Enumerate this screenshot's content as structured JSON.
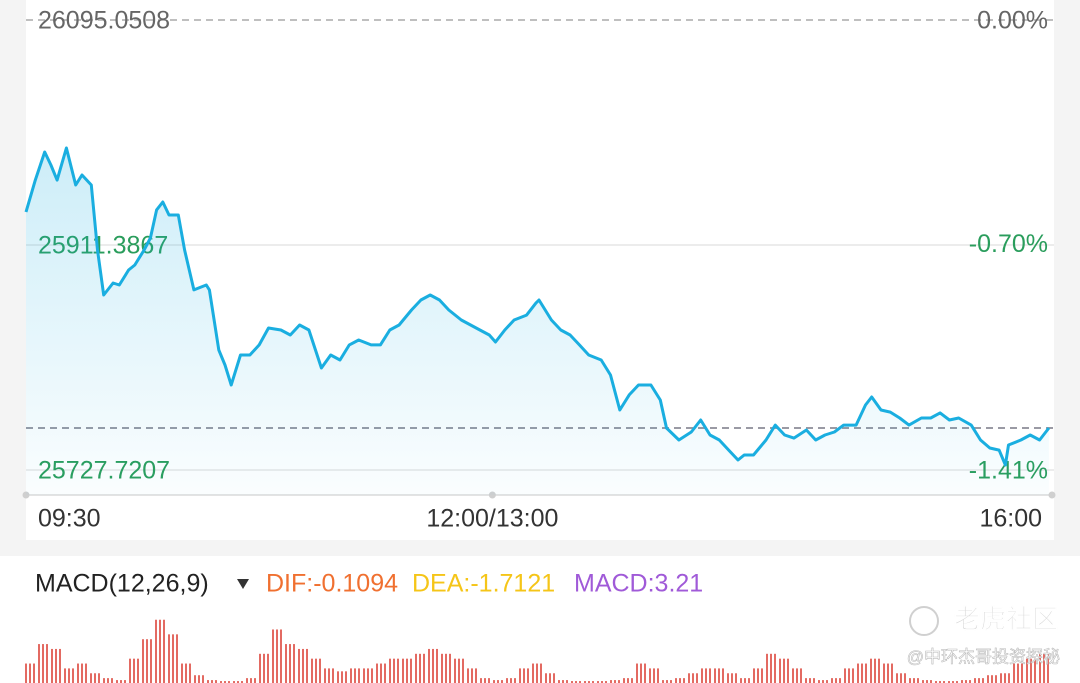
{
  "chart_data": [
    {
      "type": "line",
      "color": "#1aaee0",
      "x": [
        0,
        3,
        6,
        8,
        10,
        13,
        16,
        18,
        21,
        23,
        25,
        28,
        30,
        33,
        35,
        38,
        40,
        42,
        44,
        46,
        49,
        51,
        54,
        58,
        59,
        62,
        64,
        66,
        69,
        72,
        75,
        78,
        82,
        85,
        88,
        91,
        95,
        98,
        101,
        104,
        107,
        111,
        114,
        117,
        120,
        124,
        127,
        130,
        133,
        136,
        140,
        143,
        146,
        149,
        151,
        154,
        157,
        161,
        164,
        165,
        169,
        172,
        175,
        178,
        181,
        185,
        188,
        191,
        194,
        197,
        201,
        204,
        206,
        210,
        214,
        217,
        220,
        223,
        226,
        229,
        231,
        234,
        238,
        241,
        244,
        247,
        251,
        254,
        257,
        260,
        263,
        267,
        270,
        272,
        275,
        278,
        281,
        284,
        288,
        291,
        294,
        297,
        300,
        304,
        307,
        310,
        313,
        315,
        316,
        320,
        323,
        326,
        329
      ],
      "values": [
        25938.3,
        25964.4,
        25987.3,
        25976.7,
        25964.4,
        25990.6,
        25960.4,
        25968.5,
        25960.4,
        25907.3,
        25870.6,
        25880.4,
        25878.7,
        25891.0,
        25895.1,
        25907.3,
        25917.1,
        25940.0,
        25946.5,
        25935.9,
        25935.9,
        25907.3,
        25874.7,
        25878.7,
        25874.7,
        25825.7,
        25813.4,
        25797.1,
        25821.6,
        25821.6,
        25829.8,
        25843.6,
        25842.0,
        25837.9,
        25846.1,
        25842.0,
        25811.0,
        25821.6,
        25817.5,
        25829.8,
        25833.8,
        25829.8,
        25829.8,
        25842.0,
        25846.1,
        25858.3,
        25866.5,
        25870.6,
        25866.5,
        25858.3,
        25850.2,
        25846.1,
        25842.0,
        25837.9,
        25832.2,
        25842.0,
        25850.2,
        25854.2,
        25864.0,
        25866.5,
        25850.2,
        25842.0,
        25837.9,
        25829.8,
        25821.6,
        25817.5,
        25805.3,
        25776.7,
        25789.0,
        25797.1,
        25797.1,
        25784.9,
        25762.0,
        25752.2,
        25758.7,
        25768.5,
        25756.3,
        25752.2,
        25744.0,
        25735.9,
        25740.0,
        25740.0,
        25752.2,
        25764.4,
        25756.3,
        25753.8,
        25760.4,
        25752.2,
        25756.3,
        25758.7,
        25764.4,
        25764.4,
        25780.8,
        25787.3,
        25776.7,
        25775.0,
        25770.2,
        25764.4,
        25770.2,
        25770.2,
        25774.3,
        25768.5,
        25770.2,
        25764.4,
        25752.2,
        25745.7,
        25744.0,
        25731.8,
        25748.1,
        25752.2,
        25756.3,
        25752.2,
        25762.0
      ],
      "xlim": [
        0,
        330
      ],
      "xticks": [
        {
          "value": 0,
          "label": "09:30"
        },
        {
          "value": 150,
          "label": "12:00/13:00"
        },
        {
          "value": 330,
          "label": "16:00"
        }
      ],
      "ylim": [
        25727.7207,
        26095.0508
      ],
      "yticks": [
        26095.0508,
        25911.3867,
        25727.7207
      ],
      "y2lim": [
        -1.41,
        0
      ],
      "y2ticks": [
        {
          "value": 0,
          "label": "0.00%"
        },
        {
          "value": -0.7,
          "label": "-0.70%"
        },
        {
          "value": -1.41,
          "label": "-1.41%"
        }
      ],
      "tick_colors": [
        "#666666",
        "#2a9d5c",
        "#2a9d5c"
      ],
      "reference_value": 25762.0,
      "grid": true
    },
    {
      "type": "bar",
      "color": "#e36a62",
      "title": "MACD(12,26,9)",
      "legend": [
        {
          "label": "DIF:-0.1094",
          "color": "#f07030"
        },
        {
          "label": "DEA:-1.7121",
          "color": "#f5c518"
        },
        {
          "label": "MACD:3.21",
          "color": "#a05ad8"
        }
      ],
      "values": [
        2,
        4,
        3.5,
        1.5,
        2,
        1,
        0.5,
        0.3,
        2.5,
        4.5,
        6.5,
        5,
        2,
        0.8,
        0.3,
        0.2,
        0.2,
        0.5,
        3,
        5.5,
        4,
        3.5,
        2.5,
        1.5,
        1.2,
        1.5,
        1.5,
        2,
        2.5,
        2.5,
        3,
        3.5,
        3,
        2.5,
        1.5,
        0.5,
        0.3,
        0.5,
        1.5,
        2,
        1,
        0.3,
        0.2,
        0.2,
        0.2,
        0.3,
        0.5,
        2,
        1.5,
        0.3,
        0.5,
        1,
        1.5,
        1.5,
        1,
        0.5,
        1.5,
        3,
        2.5,
        1.5,
        0.5,
        0.3,
        0.5,
        1.5,
        2,
        2.5,
        2,
        1,
        0.5,
        0.3,
        0.2,
        0.2,
        0.3,
        0.5,
        0.8,
        1,
        2,
        2.5,
        3
      ],
      "ylim": [
        0,
        7.5
      ]
    }
  ],
  "watermark": {
    "brand": "老虎社区",
    "author": "@中环杰哥投资探秘"
  }
}
